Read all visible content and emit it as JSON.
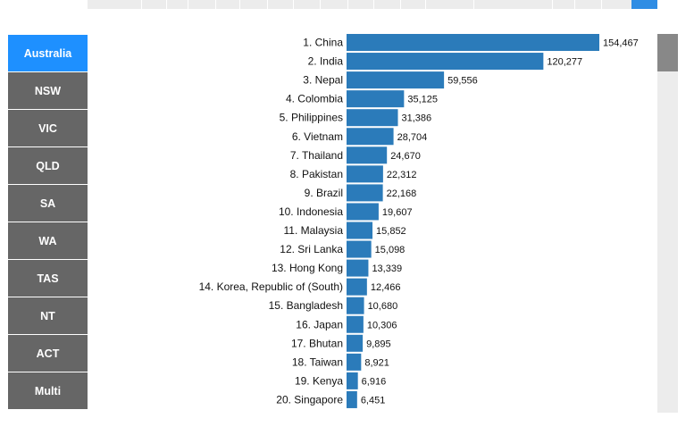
{
  "nav": {
    "items": [
      {
        "label": "Australia",
        "active": true
      },
      {
        "label": "NSW",
        "active": false
      },
      {
        "label": "VIC",
        "active": false
      },
      {
        "label": "QLD",
        "active": false
      },
      {
        "label": "SA",
        "active": false
      },
      {
        "label": "WA",
        "active": false
      },
      {
        "label": "TAS",
        "active": false
      },
      {
        "label": "NT",
        "active": false
      },
      {
        "label": "ACT",
        "active": false
      },
      {
        "label": "Multi",
        "active": false
      }
    ]
  },
  "colors": {
    "bar": "#2b7bba",
    "nav_active": "#1e90ff",
    "nav_inactive": "#666666"
  },
  "chart_data": {
    "type": "bar",
    "orientation": "horizontal",
    "categories": [
      "1. China",
      "2. India",
      "3. Nepal",
      "4. Colombia",
      "5. Philippines",
      "6. Vietnam",
      "7. Thailand",
      "8. Pakistan",
      "9. Brazil",
      "10. Indonesia",
      "11. Malaysia",
      "12. Sri Lanka",
      "13. Hong Kong",
      "14. Korea, Republic of (South)",
      "15. Bangladesh",
      "16. Japan",
      "17. Bhutan",
      "18. Taiwan",
      "19. Kenya",
      "20. Singapore"
    ],
    "values": [
      154467,
      120277,
      59556,
      35125,
      31386,
      28704,
      24670,
      22312,
      22168,
      19607,
      15852,
      15098,
      13339,
      12466,
      10680,
      10306,
      9895,
      8921,
      6916,
      6451
    ],
    "value_labels": [
      "154,467",
      "120,277",
      "59,556",
      "35,125",
      "31,386",
      "28,704",
      "24,670",
      "22,312",
      "22,168",
      "19,607",
      "15,852",
      "15,098",
      "13,339",
      "12,466",
      "10,680",
      "10,306",
      "9,895",
      "8,921",
      "6,916",
      "6,451"
    ],
    "xlim": [
      0,
      154467
    ],
    "grid": false,
    "legend": "none"
  }
}
